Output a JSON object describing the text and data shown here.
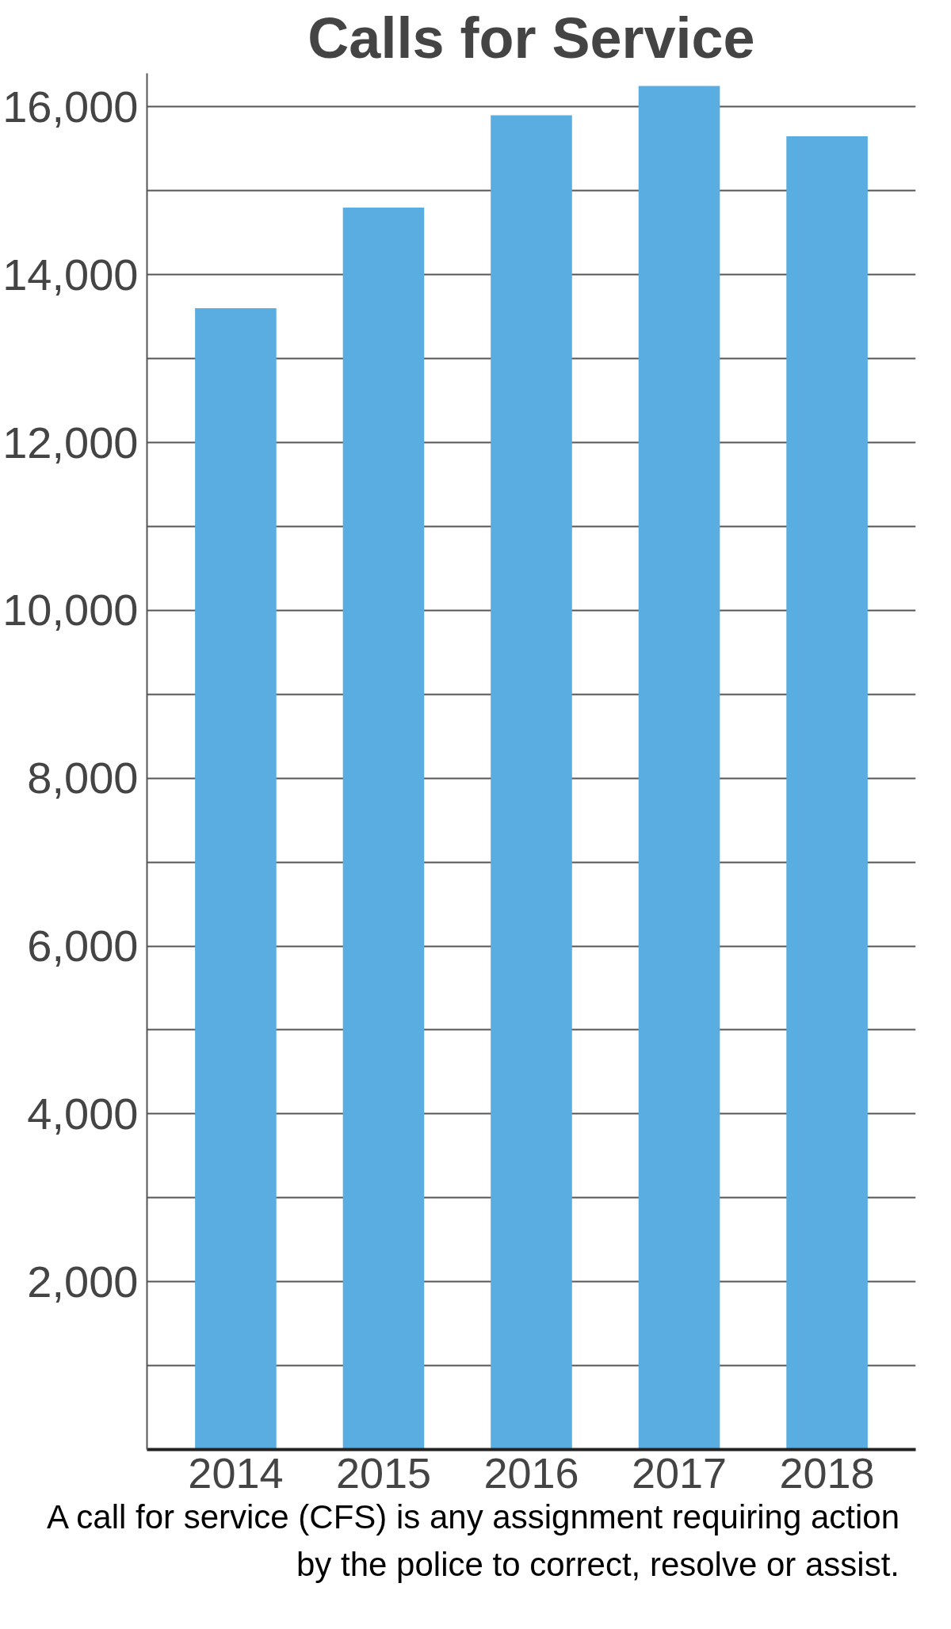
{
  "chart_data": {
    "type": "bar",
    "title": "Calls for Service",
    "categories": [
      "2014",
      "2015",
      "2016",
      "2017",
      "2018"
    ],
    "values": [
      13600,
      14800,
      15900,
      16250,
      15650
    ],
    "color": "#5aade0",
    "ylim": [
      0,
      16400
    ],
    "yticks": [
      {
        "value": 1000,
        "label": null
      },
      {
        "value": 2000,
        "label": "2,000"
      },
      {
        "value": 3000,
        "label": null
      },
      {
        "value": 4000,
        "label": "4,000"
      },
      {
        "value": 5000,
        "label": null
      },
      {
        "value": 6000,
        "label": "6,000"
      },
      {
        "value": 7000,
        "label": null
      },
      {
        "value": 8000,
        "label": "8,000"
      },
      {
        "value": 9000,
        "label": null
      },
      {
        "value": 10000,
        "label": "10,000"
      },
      {
        "value": 11000,
        "label": null
      },
      {
        "value": 12000,
        "label": "12,000"
      },
      {
        "value": 13000,
        "label": null
      },
      {
        "value": 14000,
        "label": "14,000"
      },
      {
        "value": 15000,
        "label": null
      },
      {
        "value": 16000,
        "label": "16,000"
      }
    ],
    "grid": "y",
    "annotations": [
      "A call for service (CFS) is any assignment requiring action by the police to correct, resolve or assist."
    ]
  }
}
